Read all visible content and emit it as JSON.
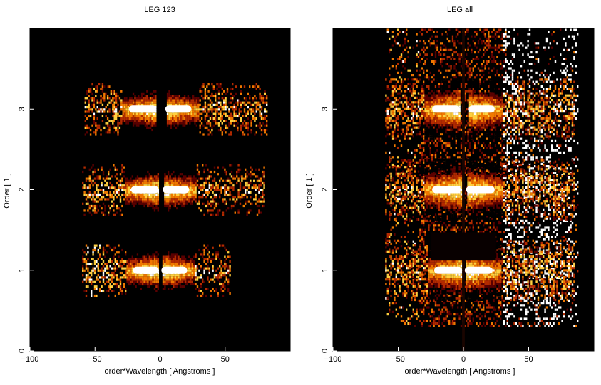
{
  "chart_data": [
    {
      "type": "heatmap",
      "title": "LEG 123",
      "xlabel": "order*Wavelength [ Angstroms ]",
      "ylabel": "Order [ 1 ]",
      "xlim": [
        -100,
        100
      ],
      "ylim": [
        0,
        4
      ],
      "x_ticks": [
        "−100",
        "−50",
        "0",
        "50"
      ],
      "x_tick_values": [
        -100,
        -50,
        0,
        50
      ],
      "y_ticks": [
        "0",
        "1",
        "2",
        "3"
      ],
      "y_tick_values": [
        0,
        1,
        2,
        3
      ],
      "colormap": [
        "#000000",
        "#5a0000",
        "#b22a00",
        "#f07800",
        "#ffd040",
        "#ffffff"
      ],
      "bands": [
        {
          "order": 3,
          "x_min": -58,
          "x_max": 82,
          "core_half_width": 30,
          "gap": [
            -3,
            4
          ],
          "edge_patch": null
        },
        {
          "order": 2,
          "x_min": -60,
          "x_max": 80,
          "core_half_width": 28,
          "gap": [
            -1,
            2
          ],
          "edge_patch": null
        },
        {
          "order": 1,
          "x_min": -60,
          "x_max": 54,
          "core_half_width": 26,
          "gap": [
            -1,
            1
          ],
          "edge_patch": [
            -58,
            -43
          ]
        }
      ]
    },
    {
      "type": "heatmap",
      "title": "LEG all",
      "xlabel": "order*Wavelength [ Angstroms ]",
      "ylabel": "Order [ 1 ]",
      "xlim": [
        -100,
        100
      ],
      "ylim": [
        0,
        4
      ],
      "x_ticks": [
        "−100",
        "−50",
        "0",
        "50"
      ],
      "x_tick_values": [
        -100,
        -50,
        0,
        50
      ],
      "y_ticks": [
        "0",
        "1",
        "2",
        "3"
      ],
      "y_tick_values": [
        0,
        1,
        2,
        3
      ],
      "colormap": [
        "#000000",
        "#5a0000",
        "#b22a00",
        "#f07800",
        "#ffd040",
        "#ffffff"
      ],
      "bands": [
        {
          "order": 3,
          "x_min": -60,
          "x_max": 85,
          "core_half_width": 30,
          "gap": [
            -3,
            4
          ],
          "edge_patch": null
        },
        {
          "order": 2,
          "x_min": -60,
          "x_max": 85,
          "core_half_width": 30,
          "gap": [
            -2,
            2
          ],
          "edge_patch": null
        },
        {
          "order": 1,
          "x_min": -60,
          "x_max": 85,
          "core_half_width": 28,
          "gap": [
            -1,
            1
          ],
          "edge_patch": null
        }
      ]
    }
  ]
}
